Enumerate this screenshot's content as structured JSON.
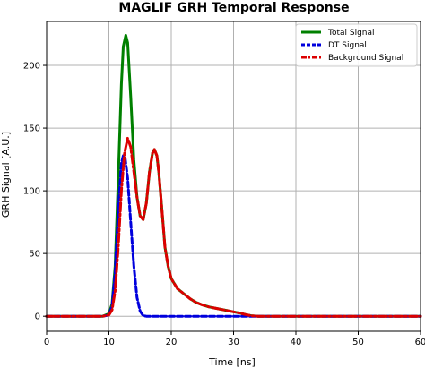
{
  "chart_data": {
    "type": "line",
    "title": "MAGLIF GRH Temporal Response",
    "xlabel": "Time [ns]",
    "ylabel": "GRH Signal [A.U.]",
    "xlim": [
      0,
      60
    ],
    "ylim": [
      -12,
      235
    ],
    "xticks": [
      0,
      10,
      20,
      30,
      40,
      50,
      60
    ],
    "yticks": [
      0,
      50,
      100,
      150,
      200
    ],
    "grid": true,
    "legend_position": "top-right",
    "series": [
      {
        "name": "Total Signal",
        "color": "#008000",
        "style": "solid",
        "x": [
          0,
          9,
          10,
          10.5,
          11,
          11.5,
          12,
          12.3,
          12.7,
          13,
          13.5,
          14,
          14.5,
          15,
          15.5,
          16,
          16.5,
          17,
          17.3,
          17.7,
          18,
          18.5,
          19,
          19.5,
          20,
          21,
          22,
          23,
          24,
          25,
          26,
          27,
          28,
          29,
          30,
          31,
          32,
          33,
          34,
          40,
          50,
          60
        ],
        "y": [
          0,
          0,
          2,
          10,
          40,
          110,
          185,
          215,
          224,
          218,
          175,
          125,
          95,
          80,
          77,
          90,
          115,
          130,
          133,
          128,
          115,
          85,
          55,
          40,
          30,
          22,
          18,
          14,
          11,
          9,
          7.5,
          6.5,
          5.5,
          4.5,
          3.5,
          2.5,
          1.2,
          0.3,
          0,
          0,
          0,
          0
        ]
      },
      {
        "name": "DT Signal",
        "color": "#0000dd",
        "style": "dashed",
        "x": [
          0,
          9,
          10,
          10.5,
          11,
          11.5,
          12,
          12.3,
          12.6,
          13,
          13.5,
          14,
          14.5,
          15,
          15.5,
          16,
          20,
          30,
          40,
          50,
          60
        ],
        "y": [
          0,
          0,
          1,
          8,
          35,
          85,
          122,
          128,
          126,
          110,
          75,
          40,
          15,
          4,
          0.5,
          0,
          0,
          0,
          0,
          0,
          0
        ]
      },
      {
        "name": "Background Signal",
        "color": "#dd0000",
        "style": "dashdot",
        "x": [
          0,
          9,
          10,
          10.5,
          11,
          11.5,
          12,
          12.5,
          13,
          13.5,
          14,
          14.5,
          15,
          15.5,
          16,
          16.5,
          17,
          17.3,
          17.7,
          18,
          18.5,
          19,
          19.5,
          20,
          21,
          22,
          23,
          24,
          25,
          26,
          27,
          28,
          29,
          30,
          31,
          32,
          33,
          34,
          40,
          50,
          60
        ],
        "y": [
          0,
          0,
          1,
          5,
          20,
          55,
          100,
          130,
          142,
          135,
          115,
          95,
          80,
          77,
          90,
          115,
          130,
          133,
          128,
          115,
          85,
          55,
          40,
          30,
          22,
          18,
          14,
          11,
          9,
          7.5,
          6.5,
          5.5,
          4.5,
          3.5,
          2.5,
          1.2,
          0.3,
          0,
          0,
          0,
          0
        ]
      }
    ]
  }
}
